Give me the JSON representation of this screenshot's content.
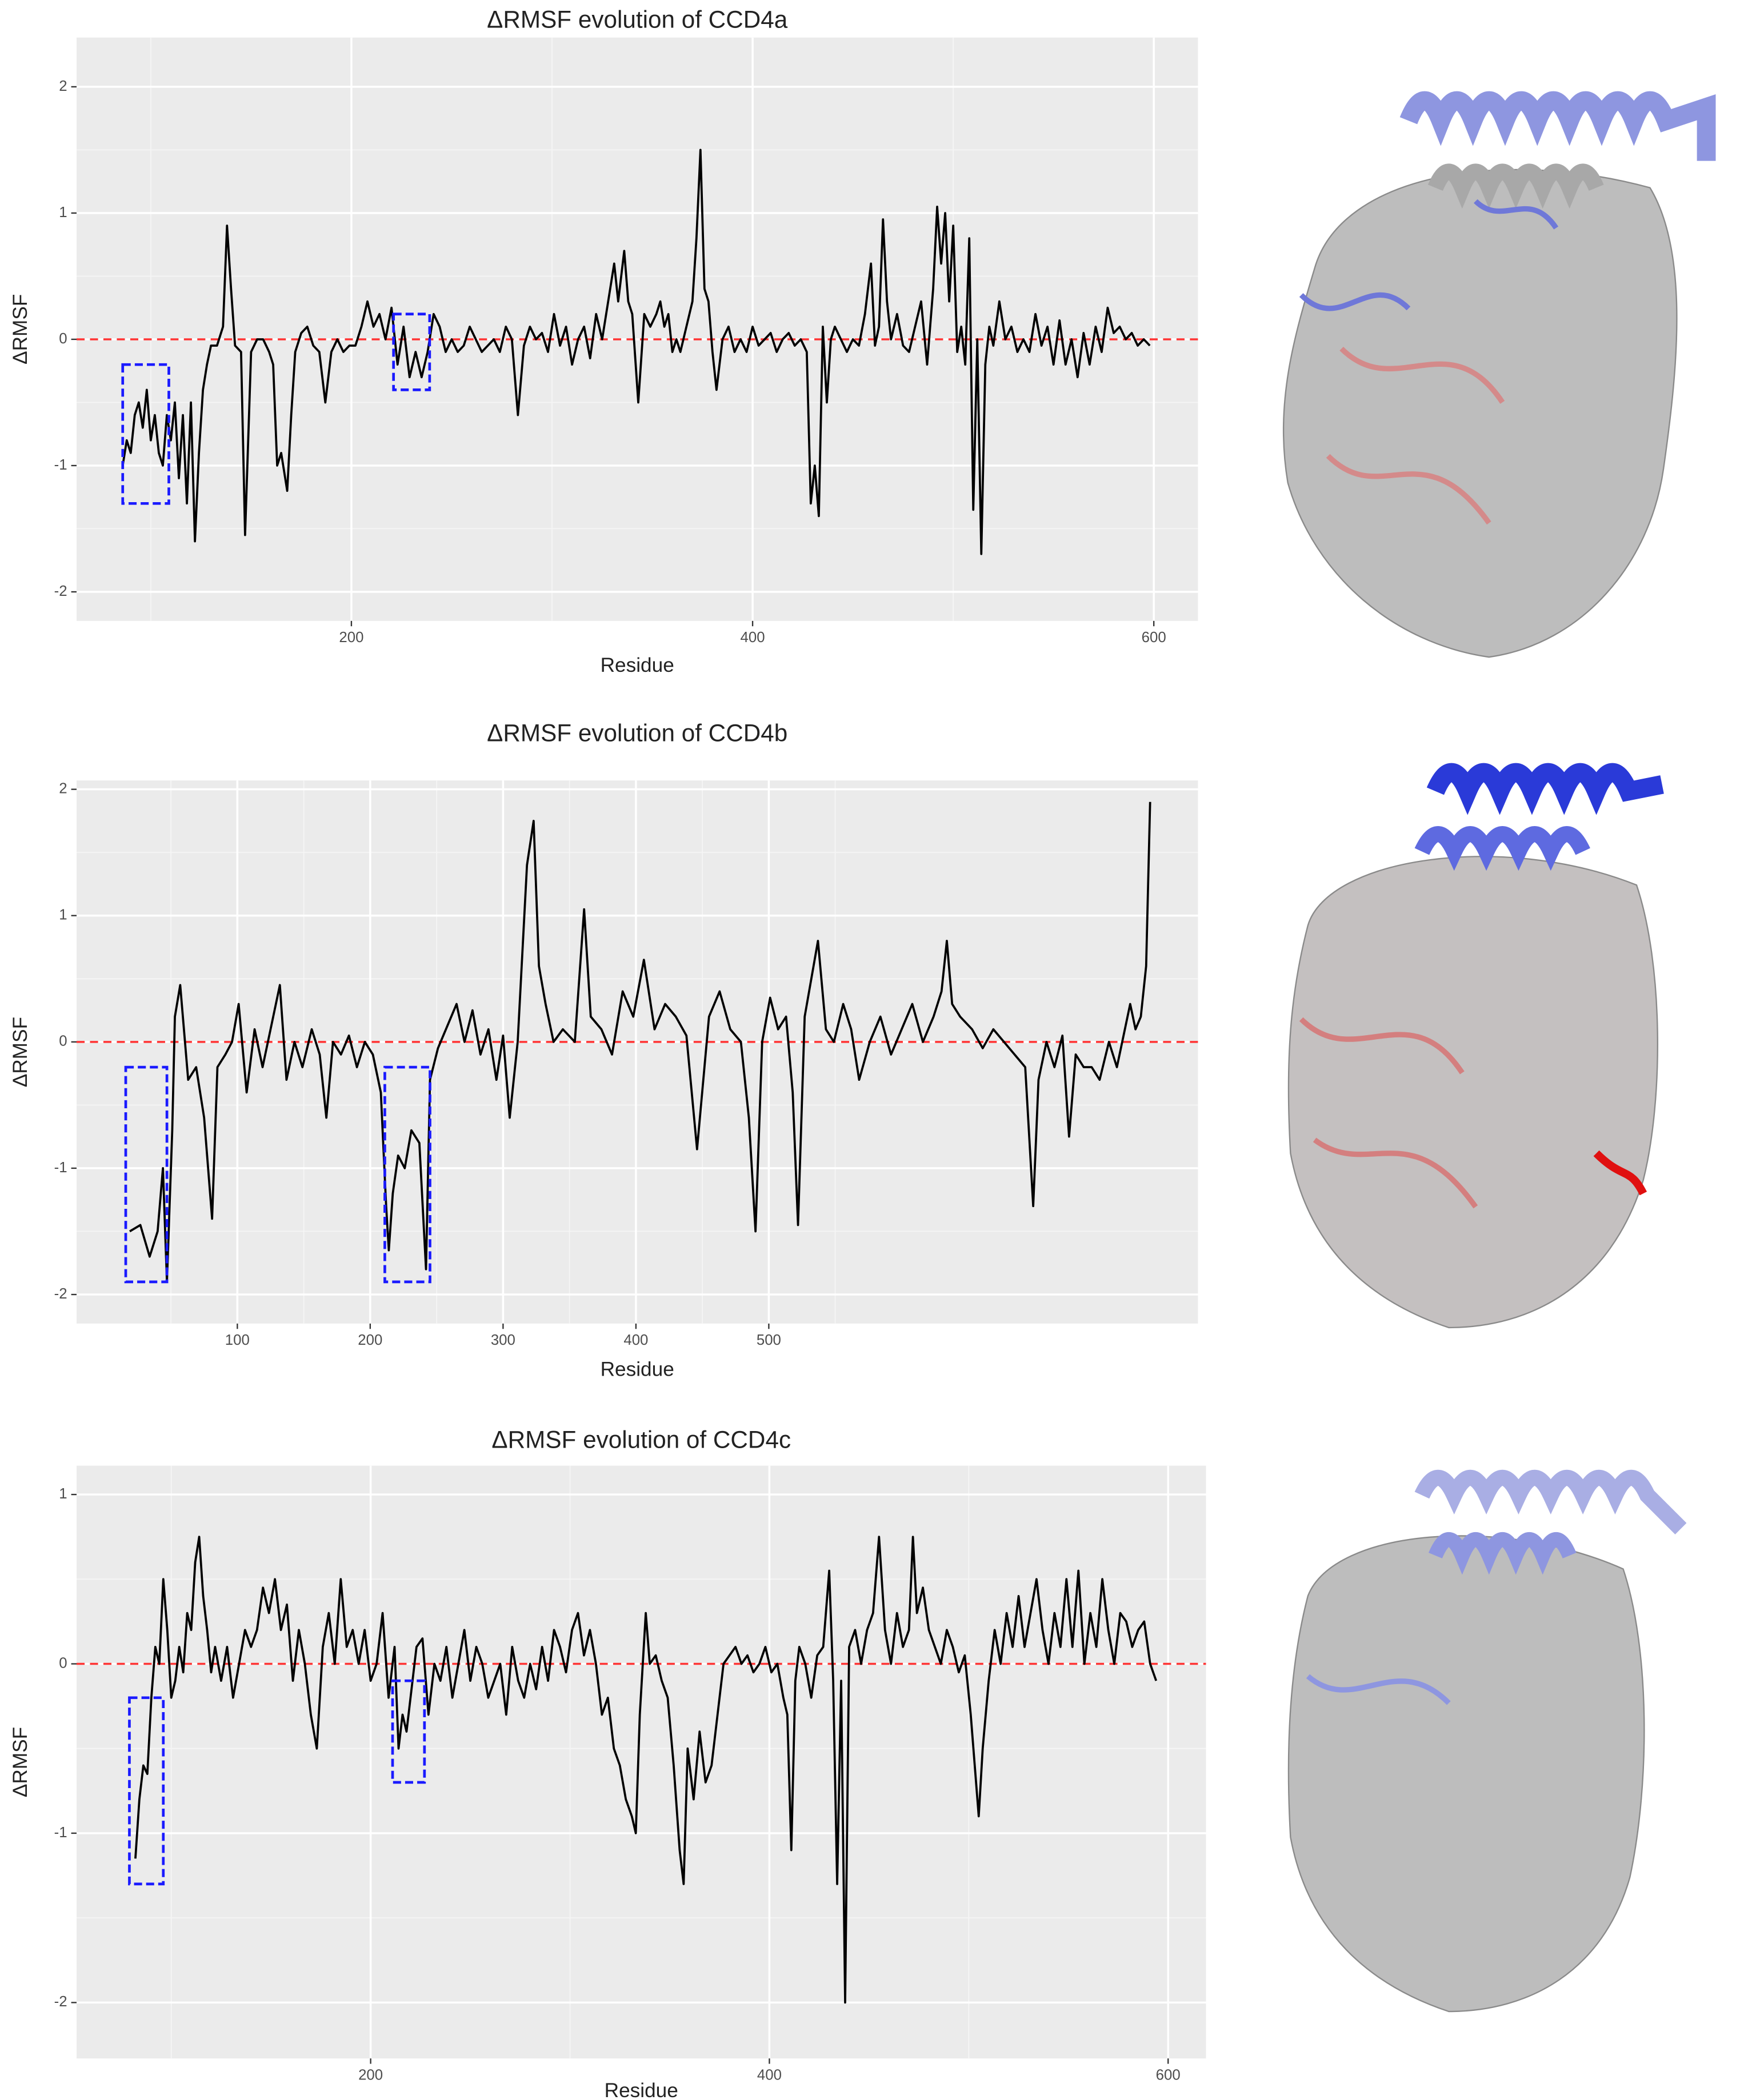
{
  "chart_data": [
    {
      "type": "line",
      "title": "ΔRMSF evolution of CCD4a",
      "x_label": "Residue",
      "y_label": "ΔRMSF",
      "color": "#000000",
      "xlim": [
        63,
        622
      ],
      "ylim": [
        -2.23,
        2.39
      ],
      "xticks": [
        200,
        400,
        600
      ],
      "yticks": [
        -2,
        -1,
        0,
        1,
        2
      ],
      "xticks_minor": [
        100,
        300,
        500
      ],
      "yticks_minor": [
        -1.5,
        -0.5,
        0.5,
        1.5
      ],
      "grid": true,
      "hline": {
        "value": 0,
        "color": "#ff3333"
      },
      "box_color": "#1a1aff",
      "boxes": [
        {
          "x": [
            86,
            109
          ],
          "y": [
            -1.3,
            -0.2
          ]
        },
        {
          "x": [
            221,
            239
          ],
          "y": [
            -0.4,
            0.2
          ]
        }
      ],
      "x": [
        86,
        88,
        90,
        92,
        94,
        96,
        98,
        100,
        102,
        104,
        106,
        108,
        110,
        112,
        114,
        116,
        118,
        120,
        122,
        124,
        126,
        128,
        130,
        133,
        136,
        138,
        140,
        142,
        145,
        147,
        150,
        153,
        156,
        159,
        161,
        163,
        165,
        168,
        170,
        172,
        175,
        178,
        181,
        184,
        187,
        190,
        193,
        196,
        199,
        202,
        205,
        208,
        211,
        214,
        217,
        220,
        223,
        226,
        229,
        232,
        235,
        238,
        241,
        244,
        247,
        250,
        253,
        256,
        259,
        262,
        265,
        268,
        271,
        274,
        277,
        280,
        283,
        286,
        289,
        292,
        295,
        298,
        301,
        304,
        307,
        310,
        313,
        316,
        319,
        322,
        325,
        328,
        331,
        333,
        336,
        338,
        340,
        343,
        346,
        349,
        352,
        354,
        356,
        358,
        360,
        362,
        364,
        367,
        370,
        372,
        374,
        376,
        378,
        380,
        382,
        385,
        388,
        391,
        394,
        397,
        400,
        403,
        406,
        409,
        412,
        415,
        418,
        421,
        424,
        427,
        429,
        431,
        433,
        435,
        437,
        439,
        441,
        444,
        447,
        450,
        453,
        456,
        459,
        461,
        463,
        465,
        467,
        469,
        472,
        475,
        478,
        481,
        484,
        487,
        490,
        492,
        494,
        496,
        498,
        500,
        502,
        504,
        506,
        508,
        510,
        512,
        514,
        516,
        518,
        520,
        523,
        526,
        529,
        532,
        535,
        538,
        541,
        544,
        547,
        550,
        553,
        556,
        559,
        562,
        565,
        568,
        571,
        574,
        577,
        580,
        583,
        586,
        589,
        592,
        595,
        598
      ],
      "values": [
        -1.0,
        -0.8,
        -0.9,
        -0.6,
        -0.5,
        -0.7,
        -0.4,
        -0.8,
        -0.6,
        -0.9,
        -1.0,
        -0.6,
        -0.8,
        -0.5,
        -1.1,
        -0.6,
        -1.3,
        -0.5,
        -1.6,
        -0.9,
        -0.4,
        -0.2,
        -0.05,
        -0.05,
        0.1,
        0.9,
        0.4,
        -0.05,
        -0.1,
        -1.55,
        -0.1,
        0.0,
        0.0,
        -0.1,
        -0.2,
        -1.0,
        -0.9,
        -1.2,
        -0.6,
        -0.1,
        0.05,
        0.1,
        -0.05,
        -0.1,
        -0.5,
        -0.1,
        0.0,
        -0.1,
        -0.05,
        -0.05,
        0.1,
        0.3,
        0.1,
        0.2,
        0.0,
        0.25,
        -0.2,
        0.1,
        -0.3,
        -0.1,
        -0.3,
        -0.1,
        0.2,
        0.1,
        -0.1,
        0.0,
        -0.1,
        -0.05,
        0.1,
        0.0,
        -0.1,
        -0.05,
        0.0,
        -0.1,
        0.1,
        0.0,
        -0.6,
        -0.05,
        0.1,
        0.0,
        0.05,
        -0.1,
        0.2,
        -0.05,
        0.1,
        -0.2,
        0.0,
        0.1,
        -0.15,
        0.2,
        0.0,
        0.3,
        0.6,
        0.3,
        0.7,
        0.3,
        0.2,
        -0.5,
        0.2,
        0.1,
        0.2,
        0.3,
        0.1,
        0.2,
        -0.1,
        0.0,
        -0.1,
        0.1,
        0.3,
        0.8,
        1.5,
        0.4,
        0.3,
        -0.1,
        -0.4,
        0.0,
        0.1,
        -0.1,
        0.0,
        -0.1,
        0.1,
        -0.05,
        0.0,
        0.05,
        -0.1,
        0.0,
        0.05,
        -0.05,
        0.0,
        -0.1,
        -1.3,
        -1.0,
        -1.4,
        0.1,
        -0.5,
        0.0,
        0.1,
        0.0,
        -0.1,
        0.0,
        -0.05,
        0.2,
        0.6,
        -0.05,
        0.1,
        0.95,
        0.3,
        0.0,
        0.2,
        -0.05,
        -0.1,
        0.1,
        0.3,
        -0.2,
        0.4,
        1.05,
        0.6,
        1.0,
        0.3,
        0.9,
        -0.1,
        0.1,
        -0.2,
        0.8,
        -1.35,
        0.0,
        -1.7,
        -0.2,
        0.1,
        -0.05,
        0.3,
        0.0,
        0.1,
        -0.1,
        0.0,
        -0.1,
        0.2,
        -0.05,
        0.1,
        -0.2,
        0.15,
        -0.2,
        0.0,
        -0.3,
        0.05,
        -0.2,
        0.1,
        -0.1,
        0.25,
        0.05,
        0.1,
        0.0,
        0.05,
        -0.05,
        0.0,
        -0.05
      ]
    },
    {
      "type": "line",
      "title": "ΔRMSF evolution of CCD4b",
      "x_label": "Residue",
      "y_label": "ΔRMSF",
      "color": "#000000",
      "xlim": [
        -21,
        823
      ],
      "ylim": [
        -2.23,
        2.07
      ],
      "xticks": [
        100,
        200,
        300,
        400,
        500
      ],
      "yticks": [
        -2,
        -1,
        0,
        1,
        2
      ],
      "xticks_minor": [
        50,
        150,
        250,
        350,
        450,
        550
      ],
      "yticks_minor": [
        -1.5,
        -0.5,
        0.5,
        1.5
      ],
      "grid": true,
      "hline": {
        "value": 0,
        "color": "#ff3333"
      },
      "box_color": "#1a1aff",
      "boxes": [
        {
          "x": [
            16,
            47
          ],
          "y": [
            -1.9,
            -0.2
          ]
        },
        {
          "x": [
            211,
            245
          ],
          "y": [
            -1.9,
            -0.2
          ]
        }
      ],
      "x": [
        19,
        27,
        34,
        40,
        44,
        47,
        51,
        53,
        57,
        63,
        69,
        75,
        81,
        85,
        91,
        96,
        101,
        107,
        113,
        119,
        125,
        132,
        137,
        143,
        149,
        156,
        162,
        167,
        172,
        178,
        184,
        190,
        196,
        202,
        208,
        212,
        214,
        217,
        221,
        226,
        231,
        237,
        242,
        245,
        251,
        257,
        265,
        271,
        277,
        283,
        289,
        295,
        300,
        305,
        311,
        318,
        323,
        327,
        332,
        338,
        345,
        354,
        361,
        366,
        374,
        382,
        390,
        398,
        406,
        414,
        422,
        430,
        438,
        446,
        455,
        463,
        471,
        479,
        485,
        490,
        495,
        501,
        507,
        513,
        518,
        522,
        527,
        532,
        537,
        543,
        549,
        556,
        562,
        568,
        576,
        584,
        592,
        600,
        608,
        616,
        624,
        630,
        634,
        638,
        644,
        653,
        661,
        669,
        677,
        685,
        693,
        699,
        703,
        709,
        715,
        721,
        726,
        731,
        737,
        743,
        749,
        756,
        762,
        768,
        772,
        776,
        780,
        784,
        787
      ],
      "values": [
        -1.5,
        -1.45,
        -1.7,
        -1.5,
        -1.0,
        -1.9,
        -0.7,
        0.2,
        0.45,
        -0.3,
        -0.2,
        -0.6,
        -1.4,
        -0.2,
        -0.1,
        0.0,
        0.3,
        -0.4,
        0.1,
        -0.2,
        0.1,
        0.45,
        -0.3,
        0.0,
        -0.2,
        0.1,
        -0.1,
        -0.6,
        0.0,
        -0.1,
        0.05,
        -0.2,
        0.0,
        -0.1,
        -0.4,
        -1.3,
        -1.65,
        -1.2,
        -0.9,
        -1.0,
        -0.7,
        -0.8,
        -1.8,
        -0.3,
        -0.05,
        0.1,
        0.3,
        0.0,
        0.25,
        -0.1,
        0.1,
        -0.3,
        0.05,
        -0.6,
        0.0,
        1.4,
        1.75,
        0.6,
        0.3,
        0.0,
        0.1,
        0.0,
        1.05,
        0.2,
        0.1,
        -0.1,
        0.4,
        0.2,
        0.65,
        0.1,
        0.3,
        0.2,
        0.05,
        -0.85,
        0.2,
        0.4,
        0.1,
        0.0,
        -0.6,
        -1.5,
        0.0,
        0.35,
        0.1,
        0.2,
        -0.4,
        -1.45,
        0.2,
        0.5,
        0.8,
        0.1,
        0.0,
        0.3,
        0.1,
        -0.3,
        0.0,
        0.2,
        -0.1,
        0.1,
        0.3,
        0.0,
        0.2,
        0.4,
        0.8,
        0.3,
        0.2,
        0.1,
        -0.05,
        0.1,
        0.0,
        -0.1,
        -0.2,
        -1.3,
        -0.3,
        0.0,
        -0.2,
        0.05,
        -0.75,
        -0.1,
        -0.2,
        -0.2,
        -0.3,
        0.0,
        -0.2,
        0.1,
        0.3,
        0.1,
        0.2,
        0.6,
        1.9
      ]
    },
    {
      "type": "line",
      "title": "ΔRMSF evolution of CCD4c",
      "x_label": "Residue",
      "y_label": "ΔRMSF",
      "color": "#000000",
      "xlim": [
        52.5,
        619
      ],
      "ylim": [
        -2.33,
        1.17
      ],
      "xticks": [
        200,
        400,
        600
      ],
      "yticks": [
        -2,
        -1,
        0,
        1
      ],
      "xticks_minor": [
        100,
        300,
        500
      ],
      "yticks_minor": [
        -1.5,
        -0.5,
        0.5
      ],
      "grid": true,
      "hline": {
        "value": 0,
        "color": "#ff3333"
      },
      "box_color": "#1a1aff",
      "boxes": [
        {
          "x": [
            79,
            96
          ],
          "y": [
            -1.3,
            -0.2
          ]
        },
        {
          "x": [
            211,
            227
          ],
          "y": [
            -0.7,
            -0.1
          ]
        }
      ],
      "x": [
        82,
        84,
        86,
        88,
        90,
        92,
        94,
        96,
        98,
        100,
        102,
        104,
        106,
        108,
        110,
        112,
        114,
        116,
        118,
        120,
        122,
        125,
        128,
        131,
        134,
        137,
        140,
        143,
        146,
        149,
        152,
        155,
        158,
        161,
        164,
        167,
        170,
        173,
        176,
        179,
        182,
        185,
        188,
        191,
        194,
        197,
        200,
        203,
        206,
        209,
        212,
        214,
        216,
        218,
        220,
        223,
        226,
        229,
        232,
        235,
        238,
        241,
        244,
        247,
        250,
        253,
        256,
        259,
        262,
        265,
        268,
        271,
        274,
        277,
        280,
        283,
        286,
        289,
        292,
        295,
        298,
        301,
        304,
        307,
        310,
        313,
        316,
        319,
        322,
        325,
        328,
        331,
        333,
        335,
        338,
        340,
        343,
        346,
        349,
        352,
        355,
        357,
        359,
        362,
        365,
        368,
        371,
        374,
        377,
        380,
        383,
        386,
        389,
        392,
        395,
        398,
        401,
        404,
        407,
        409,
        411,
        413,
        415,
        418,
        421,
        424,
        427,
        430,
        432,
        434,
        436,
        438,
        440,
        443,
        446,
        449,
        452,
        455,
        458,
        461,
        464,
        467,
        470,
        472,
        474,
        477,
        480,
        483,
        486,
        489,
        492,
        495,
        498,
        501,
        503,
        505,
        507,
        510,
        513,
        516,
        519,
        522,
        525,
        528,
        531,
        534,
        537,
        540,
        543,
        546,
        549,
        552,
        555,
        558,
        561,
        564,
        567,
        570,
        573,
        576,
        579,
        582,
        585,
        588,
        591,
        594
      ],
      "values": [
        -1.15,
        -0.8,
        -0.6,
        -0.65,
        -0.2,
        0.1,
        0.0,
        0.5,
        0.2,
        -0.2,
        -0.1,
        0.1,
        -0.05,
        0.3,
        0.2,
        0.6,
        0.75,
        0.4,
        0.2,
        -0.05,
        0.1,
        -0.1,
        0.1,
        -0.2,
        0.0,
        0.2,
        0.1,
        0.2,
        0.45,
        0.3,
        0.5,
        0.2,
        0.35,
        -0.1,
        0.2,
        0.0,
        -0.3,
        -0.5,
        0.1,
        0.3,
        0.0,
        0.5,
        0.1,
        0.2,
        0.0,
        0.2,
        -0.1,
        0.0,
        0.3,
        -0.2,
        0.1,
        -0.5,
        -0.3,
        -0.4,
        -0.2,
        0.1,
        0.15,
        -0.3,
        0.0,
        -0.1,
        0.1,
        -0.2,
        0.0,
        0.2,
        -0.1,
        0.1,
        0.0,
        -0.2,
        -0.1,
        0.0,
        -0.3,
        0.1,
        -0.1,
        -0.2,
        0.0,
        -0.15,
        0.1,
        -0.1,
        0.2,
        0.1,
        -0.05,
        0.2,
        0.3,
        0.05,
        0.2,
        0.0,
        -0.3,
        -0.2,
        -0.5,
        -0.6,
        -0.8,
        -0.9,
        -1.0,
        -0.3,
        0.3,
        0.0,
        0.05,
        -0.1,
        -0.2,
        -0.6,
        -1.1,
        -1.3,
        -0.5,
        -0.8,
        -0.4,
        -0.7,
        -0.6,
        -0.3,
        0.0,
        0.05,
        0.1,
        0.0,
        0.05,
        -0.05,
        0.0,
        0.1,
        -0.05,
        0.0,
        -0.2,
        -0.3,
        -1.1,
        -0.1,
        0.1,
        0.0,
        -0.2,
        0.05,
        0.1,
        0.55,
        -0.1,
        -1.3,
        -0.1,
        -2.0,
        0.1,
        0.2,
        0.0,
        0.2,
        0.3,
        0.75,
        0.2,
        0.0,
        0.3,
        0.1,
        0.2,
        0.75,
        0.3,
        0.45,
        0.2,
        0.1,
        0.0,
        0.2,
        0.1,
        -0.05,
        0.05,
        -0.3,
        -0.6,
        -0.9,
        -0.5,
        -0.1,
        0.2,
        0.0,
        0.3,
        0.1,
        0.4,
        0.1,
        0.3,
        0.5,
        0.2,
        0.0,
        0.3,
        0.1,
        0.5,
        0.1,
        0.55,
        0.0,
        0.3,
        0.1,
        0.5,
        0.2,
        0.0,
        0.3,
        0.25,
        0.1,
        0.2,
        0.25,
        0.0,
        -0.1
      ]
    }
  ]
}
